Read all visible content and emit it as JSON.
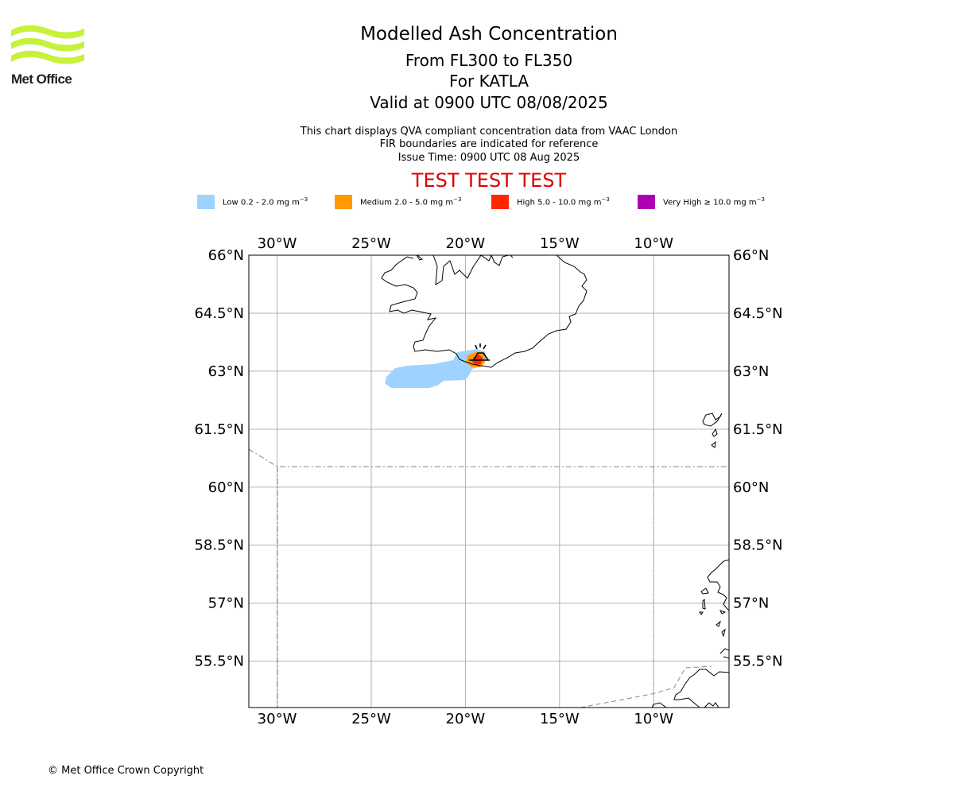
{
  "branding": {
    "logo_text": "Met Office",
    "logo_color": "#c6f23a"
  },
  "header": {
    "title": "Modelled Ash Concentration",
    "flight_levels": "From FL300 to FL350",
    "volcano": "For KATLA",
    "valid_time": "Valid at 0900 UTC 08/08/2025",
    "description": "This chart displays QVA compliant concentration data from VAAC London",
    "fir_note": "FIR boundaries are indicated for reference",
    "issue_time": "Issue Time: 0900 UTC 08 Aug 2025",
    "test_banner": "TEST TEST TEST",
    "test_banner_color": "#dd0000"
  },
  "legend": [
    {
      "label": "Low 0.2 - 2.0 mg m",
      "exp": "−3",
      "color": "#9fd3ff"
    },
    {
      "label": "Medium 2.0 - 5.0 mg m",
      "exp": "−3",
      "color": "#ff9a00"
    },
    {
      "label": "High 5.0 - 10.0 mg m",
      "exp": "−3",
      "color": "#ff2600"
    },
    {
      "label": "Very High  ≥  10.0 mg m",
      "exp": "−3",
      "color": "#b000b4"
    }
  ],
  "map": {
    "projection": "lat-lon",
    "lon_range": [
      -31.5,
      -6
    ],
    "lat_range": [
      54.3,
      66
    ],
    "lon_ticks": [
      {
        "value": -30,
        "label": "30°W"
      },
      {
        "value": -25,
        "label": "25°W"
      },
      {
        "value": -20,
        "label": "20°W"
      },
      {
        "value": -15,
        "label": "15°W"
      },
      {
        "value": -10,
        "label": "10°W"
      }
    ],
    "lat_ticks": [
      {
        "value": 66,
        "label": "66°N"
      },
      {
        "value": 64.5,
        "label": "64.5°N"
      },
      {
        "value": 63,
        "label": "63°N"
      },
      {
        "value": 61.5,
        "label": "61.5°N"
      },
      {
        "value": 60,
        "label": "60°N"
      },
      {
        "value": 58.5,
        "label": "58.5°N"
      },
      {
        "value": 57,
        "label": "57°N"
      },
      {
        "value": 55.5,
        "label": "55.5°N"
      }
    ],
    "gridlines": true,
    "volcano_symbol": "volcano-icon",
    "volcano_location": [
      -19.05,
      63.63
    ]
  },
  "footer": {
    "copyright": "© Met Office Crown Copyright"
  }
}
